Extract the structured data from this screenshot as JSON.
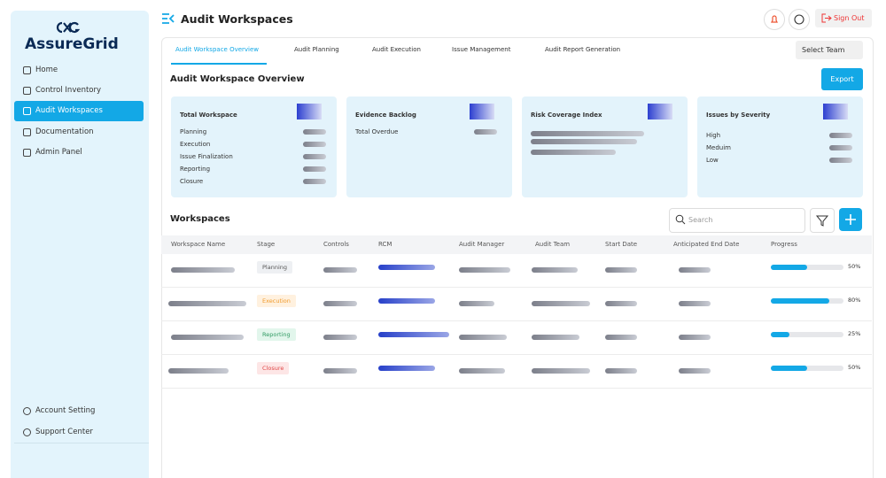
{
  "sidebar": {
    "logo": "AssureGrid",
    "nav": [
      "Home",
      "Control Inventory",
      "Audit Workspaces",
      "Documentation",
      "Admin Panel"
    ],
    "bottom_nav": [
      "Account Setting",
      "Support Center"
    ]
  },
  "header": {
    "title": "Audit Workspaces",
    "sign_out": "Sign Out"
  },
  "tabs": [
    "Audit Workspace Overview",
    "Audit Planning",
    "Audit Execution",
    "Issue Management",
    "Audit Report Generation"
  ],
  "select_team": "Select Team",
  "overview": {
    "title": "Audit Workspace Overview",
    "export": "Export",
    "cards": [
      {
        "title": "Total Workspace",
        "items": [
          "Planning",
          "Execution",
          "Issue Finalization",
          "Reporting",
          "Closure"
        ]
      },
      {
        "title": "Evidence Backlog",
        "items": [
          "Total Overdue"
        ]
      },
      {
        "title": "Risk Coverage Index"
      },
      {
        "title": "Issues by Severity",
        "items": [
          "High",
          "Meduim",
          "Low"
        ]
      }
    ]
  },
  "workspaces": {
    "title": "Workspaces",
    "search_placeholder": "Search",
    "columns": [
      "Workspace Name",
      "Stage",
      "Controls",
      "RCM",
      "Audit Manager",
      "Audit Team",
      "Start Date",
      "Anticipated End Date",
      "Progress"
    ],
    "rows": [
      {
        "stage": "Planning",
        "progress": {
          "value": 50,
          "label": "50%"
        }
      },
      {
        "stage": "Execution",
        "progress": {
          "value": 80,
          "label": "80%"
        }
      },
      {
        "stage": "Reporting",
        "progress": {
          "value": 25,
          "label": "25%"
        }
      },
      {
        "stage": "Closure",
        "progress": {
          "value": 50,
          "label": "50%"
        }
      }
    ]
  }
}
